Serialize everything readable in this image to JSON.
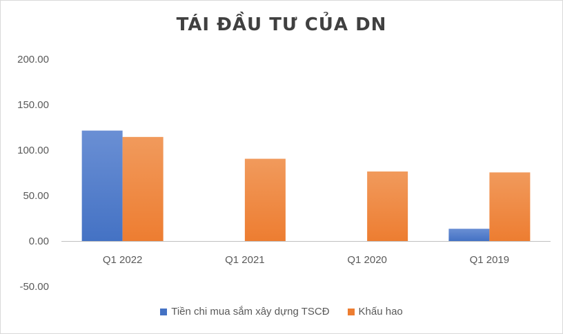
{
  "chart_data": {
    "type": "bar",
    "title": "TÁI ĐẦU TƯ CỦA DN",
    "categories": [
      "Q1 2022",
      "Q1 2021",
      "Q1 2020",
      "Q1 2019"
    ],
    "series": [
      {
        "name": "Tiền chi mua sắm xây dựng TSCĐ",
        "color": "#4472c4",
        "values": [
          121.5,
          -0.5,
          -0.5,
          13.5
        ]
      },
      {
        "name": "Khấu hao",
        "color": "#ed7d31",
        "values": [
          114.5,
          90.5,
          76.5,
          75.5
        ]
      }
    ],
    "y_ticks": [
      "200.00",
      "150.00",
      "100.00",
      "50.00",
      "0.00",
      "-50.00"
    ],
    "ylim": [
      -50,
      200
    ],
    "grid": false,
    "legend_position": "bottom"
  }
}
